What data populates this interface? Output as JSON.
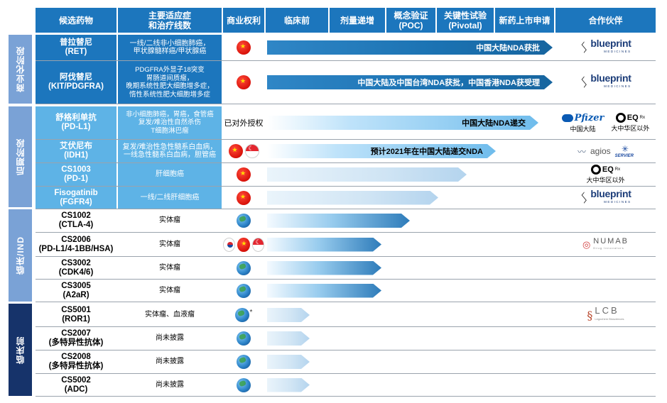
{
  "headers": {
    "drug": "候选药物",
    "indication": "主要适应症\n和治疗线数",
    "rights": "商业权利",
    "preclinical": "临床前",
    "dose": "剂量递增",
    "poc": "概念验证\n(POC)",
    "pivotal": "关键性试验\n(Pivotal)",
    "nda": "新药上市申请",
    "partner": "合作伙伴"
  },
  "phases": [
    {
      "label": "商业化阶段"
    },
    {
      "label": "后期阶段"
    },
    {
      "label": "临床/IND"
    },
    {
      "label": "临床前"
    }
  ],
  "rows": [
    {
      "drug": "普拉替尼\n(RET)",
      "indication": "一线/二线非小细胞肺癌，\n甲状腺髓样癌/甲状腺癌",
      "rights": [
        "china"
      ],
      "bar_label": "中国大陆NDA获批",
      "progress": 1.0,
      "partner": "blueprint"
    },
    {
      "drug": "阿伐替尼\n(KIT/PDGFRA)",
      "indication": "PDGFRA外显子18突变\n胃肠道间质瘤，\n晚期系统性肥大细胞增多症，\n惰性系统性肥大细胞增多症",
      "rights": [
        "china"
      ],
      "bar_label": "中国大陆及中国台湾NDA获批，中国香港NDA获受理",
      "progress": 1.0,
      "partner": "blueprint"
    },
    {
      "drug": "舒格利单抗\n(PD-L1)",
      "indication": "非小细胞肺癌，胃癌，食管癌\n复发/难治性自然杀伤\nT细胞淋巴瘤",
      "rights": [],
      "rights_text": "已对外授权",
      "bar_label": "中国大陆NDA递交",
      "progress": 0.95,
      "partner": "pfizer-eq"
    },
    {
      "drug": "艾伏尼布\n(IDH1)",
      "indication": "复发/难治性急性髓系白血病，\n一线急性髓系白血病，胆管癌",
      "rights": [
        "china",
        "singapore"
      ],
      "bar_label": "预计2021年在中国大陆递交NDA",
      "progress": 0.8,
      "partner": "agios-servier"
    },
    {
      "drug": "CS1003\n(PD-1)",
      "indication": "肝细胞癌",
      "rights": [
        "china"
      ],
      "bar_label": "",
      "progress": 0.7,
      "partner": "eq"
    },
    {
      "drug": "Fisogatinib\n(FGFR4)",
      "indication": "一线/二线肝细胞癌",
      "rights": [
        "china"
      ],
      "bar_label": "",
      "progress": 0.6,
      "partner": "blueprint"
    },
    {
      "drug": "CS1002\n(CTLA-4)",
      "indication": "实体瘤",
      "rights": [
        "global"
      ],
      "bar_label": "",
      "progress": 0.5,
      "partner": ""
    },
    {
      "drug": "CS2006\n(PD-L1/4-1BB/HSA)",
      "indication": "实体瘤",
      "rights": [
        "korea",
        "china",
        "singapore"
      ],
      "bar_label": "",
      "progress": 0.4,
      "partner": "numab"
    },
    {
      "drug": "CS3002\n(CDK4/6)",
      "indication": "实体瘤",
      "rights": [
        "global"
      ],
      "bar_label": "",
      "progress": 0.4,
      "partner": ""
    },
    {
      "drug": "CS3005\n(A2aR)",
      "indication": "实体瘤",
      "rights": [
        "global"
      ],
      "bar_label": "",
      "progress": 0.4,
      "partner": ""
    },
    {
      "drug": "CS5001\n(ROR1)",
      "indication": "实体瘤、血液瘤",
      "rights": [
        "global"
      ],
      "rights_note": "*",
      "bar_label": "",
      "progress": 0.15,
      "partner": "lcb"
    },
    {
      "drug": "CS2007\n(多特异性抗体)",
      "indication": "尚未披露",
      "rights": [
        "global"
      ],
      "bar_label": "",
      "progress": 0.15,
      "partner": ""
    },
    {
      "drug": "CS2008\n(多特异性抗体)",
      "indication": "尚未披露",
      "rights": [
        "global"
      ],
      "bar_label": "",
      "progress": 0.15,
      "partner": ""
    },
    {
      "drug": "CS5002\n(ADC)",
      "indication": "尚未披露",
      "rights": [
        "global"
      ],
      "bar_label": "",
      "progress": 0.15,
      "partner": ""
    }
  ],
  "partners": {
    "blueprint": {
      "name": "blueprint",
      "sub": "MEDICINES"
    },
    "pfizer": {
      "name": "Pfizer",
      "region": "中国大陆"
    },
    "eq": {
      "name": "EQ",
      "sup": "Rx",
      "region": "大中华区以外"
    },
    "agios": {
      "name": "agios"
    },
    "servier": {
      "name": "SERVIER"
    },
    "numab": {
      "name": "NUMAB",
      "sub": "Drug Innovators"
    },
    "lcb": {
      "name": "LCB",
      "sub": "Legochem Biosciences"
    }
  },
  "colors": {
    "header": "#1c76bd",
    "commercial_cell": "#1c76bd",
    "late_cell": "#5eb3e6",
    "phase_light": "#7aa2d6",
    "phase_dark": "#16336a"
  }
}
